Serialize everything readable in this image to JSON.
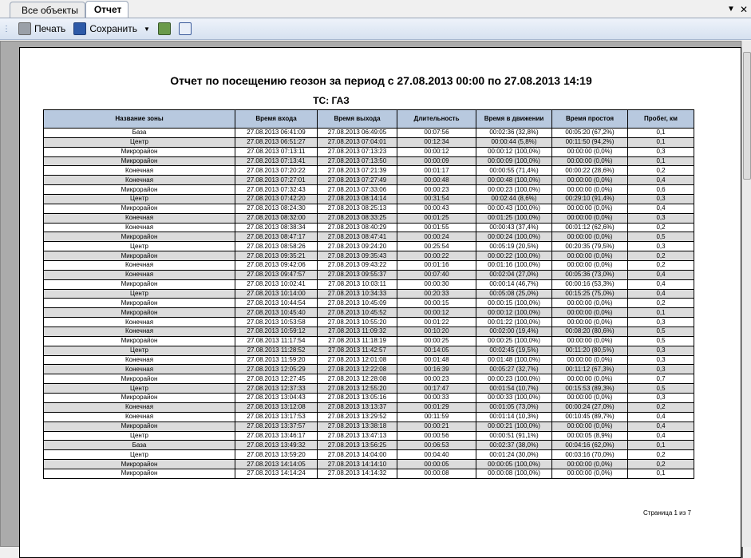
{
  "tabs": [
    {
      "label": "Все объекты",
      "active": false
    },
    {
      "label": "Отчет",
      "active": true
    }
  ],
  "toolbar": {
    "print_label": "Печать",
    "save_label": "Сохранить"
  },
  "report": {
    "title": "Отчет по посещению геозон за период с 27.08.2013 00:00 по 27.08.2013 14:19",
    "vehicle": "ТС: ГАЗ",
    "columns": [
      "Название зоны",
      "Время входа",
      "Время выхода",
      "Длительность",
      "Время в движении",
      "Время простоя",
      "Пробег, км"
    ],
    "rows": [
      [
        "База",
        "27.08.2013 06:41:09",
        "27.08.2013 06:49:05",
        "00:07:56",
        "00:02:36 (32,8%)",
        "00:05:20 (67,2%)",
        "0,1"
      ],
      [
        "Центр",
        "27.08.2013 06:51:27",
        "27.08.2013 07:04:01",
        "00:12:34",
        "00:00:44 (5,8%)",
        "00:11:50 (94,2%)",
        "0,1"
      ],
      [
        "Микрорайон",
        "27.08.2013 07:13:11",
        "27.08.2013 07:13:23",
        "00:00:12",
        "00:00:12 (100,0%)",
        "00:00:00 (0,0%)",
        "0,3"
      ],
      [
        "Микрорайон",
        "27.08.2013 07:13:41",
        "27.08.2013 07:13:50",
        "00:00:09",
        "00:00:09 (100,0%)",
        "00:00:00 (0,0%)",
        "0,1"
      ],
      [
        "Конечная",
        "27.08.2013 07:20:22",
        "27.08.2013 07:21:39",
        "00:01:17",
        "00:00:55 (71,4%)",
        "00:00:22 (28,6%)",
        "0,2"
      ],
      [
        "Конечная",
        "27.08.2013 07:27:01",
        "27.08.2013 07:27:49",
        "00:00:48",
        "00:00:48 (100,0%)",
        "00:00:00 (0,0%)",
        "0,4"
      ],
      [
        "Микрорайон",
        "27.08.2013 07:32:43",
        "27.08.2013 07:33:06",
        "00:00:23",
        "00:00:23 (100,0%)",
        "00:00:00 (0,0%)",
        "0,6"
      ],
      [
        "Центр",
        "27.08.2013 07:42:20",
        "27.08.2013 08:14:14",
        "00:31:54",
        "00:02:44 (8,6%)",
        "00:29:10 (91,4%)",
        "0,3"
      ],
      [
        "Микрорайон",
        "27.08.2013 08:24:30",
        "27.08.2013 08:25:13",
        "00:00:43",
        "00:00:43 (100,0%)",
        "00:00:00 (0,0%)",
        "0,4"
      ],
      [
        "Конечная",
        "27.08.2013 08:32:00",
        "27.08.2013 08:33:25",
        "00:01:25",
        "00:01:25 (100,0%)",
        "00:00:00 (0,0%)",
        "0,3"
      ],
      [
        "Конечная",
        "27.08.2013 08:38:34",
        "27.08.2013 08:40:29",
        "00:01:55",
        "00:00:43 (37,4%)",
        "00:01:12 (62,6%)",
        "0,2"
      ],
      [
        "Микрорайон",
        "27.08.2013 08:47:17",
        "27.08.2013 08:47:41",
        "00:00:24",
        "00:00:24 (100,0%)",
        "00:00:00 (0,0%)",
        "0,5"
      ],
      [
        "Центр",
        "27.08.2013 08:58:26",
        "27.08.2013 09:24:20",
        "00:25:54",
        "00:05:19 (20,5%)",
        "00:20:35 (79,5%)",
        "0,3"
      ],
      [
        "Микрорайон",
        "27.08.2013 09:35:21",
        "27.08.2013 09:35:43",
        "00:00:22",
        "00:00:22 (100,0%)",
        "00:00:00 (0,0%)",
        "0,2"
      ],
      [
        "Конечная",
        "27.08.2013 09:42:06",
        "27.08.2013 09:43:22",
        "00:01:16",
        "00:01:16 (100,0%)",
        "00:00:00 (0,0%)",
        "0,2"
      ],
      [
        "Конечная",
        "27.08.2013 09:47:57",
        "27.08.2013 09:55:37",
        "00:07:40",
        "00:02:04 (27,0%)",
        "00:05:36 (73,0%)",
        "0,4"
      ],
      [
        "Микрорайон",
        "27.08.2013 10:02:41",
        "27.08.2013 10:03:11",
        "00:00:30",
        "00:00:14 (46,7%)",
        "00:00:16 (53,3%)",
        "0,4"
      ],
      [
        "Центр",
        "27.08.2013 10:14:00",
        "27.08.2013 10:34:33",
        "00:20:33",
        "00:05:08 (25,0%)",
        "00:15:25 (75,0%)",
        "0,4"
      ],
      [
        "Микрорайон",
        "27.08.2013 10:44:54",
        "27.08.2013 10:45:09",
        "00:00:15",
        "00:00:15 (100,0%)",
        "00:00:00 (0,0%)",
        "0,2"
      ],
      [
        "Микрорайон",
        "27.08.2013 10:45:40",
        "27.08.2013 10:45:52",
        "00:00:12",
        "00:00:12 (100,0%)",
        "00:00:00 (0,0%)",
        "0,1"
      ],
      [
        "Конечная",
        "27.08.2013 10:53:58",
        "27.08.2013 10:55:20",
        "00:01:22",
        "00:01:22 (100,0%)",
        "00:00:00 (0,0%)",
        "0,3"
      ],
      [
        "Конечная",
        "27.08.2013 10:59:12",
        "27.08.2013 11:09:32",
        "00:10:20",
        "00:02:00 (19,4%)",
        "00:08:20 (80,6%)",
        "0,5"
      ],
      [
        "Микрорайон",
        "27.08.2013 11:17:54",
        "27.08.2013 11:18:19",
        "00:00:25",
        "00:00:25 (100,0%)",
        "00:00:00 (0,0%)",
        "0,5"
      ],
      [
        "Центр",
        "27.08.2013 11:28:52",
        "27.08.2013 11:42:57",
        "00:14:05",
        "00:02:45 (19,5%)",
        "00:11:20 (80,5%)",
        "0,3"
      ],
      [
        "Конечная",
        "27.08.2013 11:59:20",
        "27.08.2013 12:01:08",
        "00:01:48",
        "00:01:48 (100,0%)",
        "00:00:00 (0,0%)",
        "0,3"
      ],
      [
        "Конечная",
        "27.08.2013 12:05:29",
        "27.08.2013 12:22:08",
        "00:16:39",
        "00:05:27 (32,7%)",
        "00:11:12 (67,3%)",
        "0,3"
      ],
      [
        "Микрорайон",
        "27.08.2013 12:27:45",
        "27.08.2013 12:28:08",
        "00:00:23",
        "00:00:23 (100,0%)",
        "00:00:00 (0,0%)",
        "0,7"
      ],
      [
        "Центр",
        "27.08.2013 12:37:33",
        "27.08.2013 12:55:20",
        "00:17:47",
        "00:01:54 (10,7%)",
        "00:15:53 (89,3%)",
        "0,5"
      ],
      [
        "Микрорайон",
        "27.08.2013 13:04:43",
        "27.08.2013 13:05:16",
        "00:00:33",
        "00:00:33 (100,0%)",
        "00:00:00 (0,0%)",
        "0,3"
      ],
      [
        "Конечная",
        "27.08.2013 13:12:08",
        "27.08.2013 13:13:37",
        "00:01:29",
        "00:01:05 (73,0%)",
        "00:00:24 (27,0%)",
        "0,2"
      ],
      [
        "Конечная",
        "27.08.2013 13:17:53",
        "27.08.2013 13:29:52",
        "00:11:59",
        "00:01:14 (10,3%)",
        "00:10:45 (89,7%)",
        "0,4"
      ],
      [
        "Микрорайон",
        "27.08.2013 13:37:57",
        "27.08.2013 13:38:18",
        "00:00:21",
        "00:00:21 (100,0%)",
        "00:00:00 (0,0%)",
        "0,4"
      ],
      [
        "Центр",
        "27.08.2013 13:46:17",
        "27.08.2013 13:47:13",
        "00:00:56",
        "00:00:51 (91,1%)",
        "00:00:05 (8,9%)",
        "0,4"
      ],
      [
        "База",
        "27.08.2013 13:49:32",
        "27.08.2013 13:56:25",
        "00:06:53",
        "00:02:37 (38,0%)",
        "00:04:16 (62,0%)",
        "0,1"
      ],
      [
        "Центр",
        "27.08.2013 13:59:20",
        "27.08.2013 14:04:00",
        "00:04:40",
        "00:01:24 (30,0%)",
        "00:03:16 (70,0%)",
        "0,2"
      ],
      [
        "Микрорайон",
        "27.08.2013 14:14:05",
        "27.08.2013 14:14:10",
        "00:00:05",
        "00:00:05 (100,0%)",
        "00:00:00 (0,0%)",
        "0,2"
      ],
      [
        "Микрорайон",
        "27.08.2013 14:14:24",
        "27.08.2013 14:14:32",
        "00:00:08",
        "00:00:08 (100,0%)",
        "00:00:00 (0,0%)",
        "0,1"
      ]
    ],
    "pager": "Страница 1 из 7"
  },
  "colors": {
    "header": "#b8c9df",
    "stripe": "#dcdcdc"
  }
}
